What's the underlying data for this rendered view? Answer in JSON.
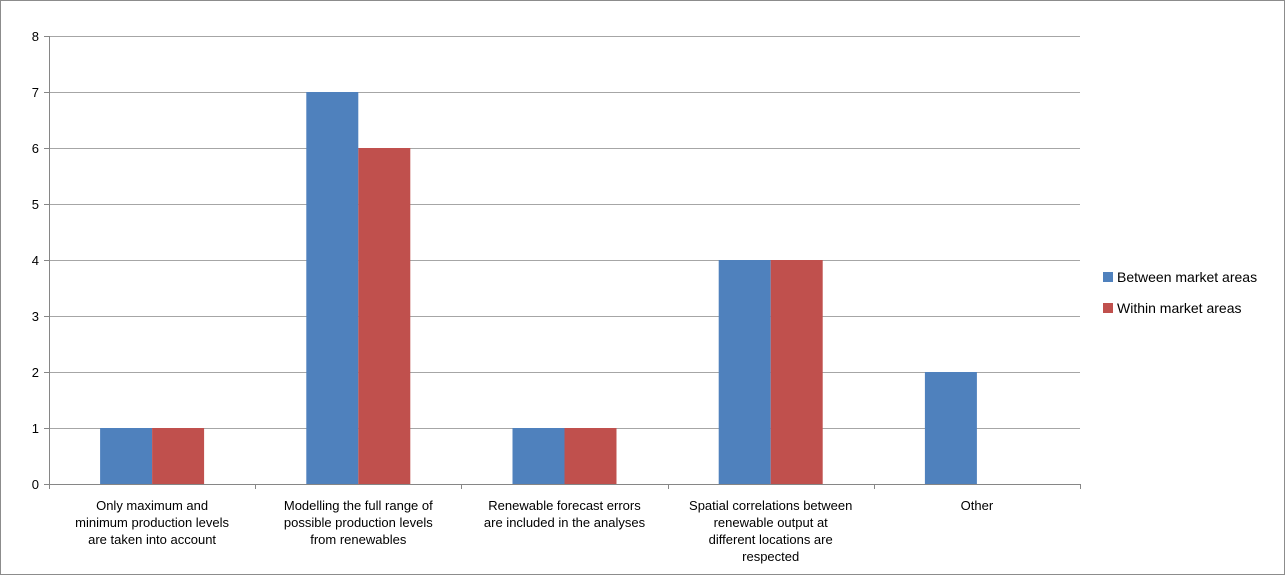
{
  "chart_data": {
    "type": "bar",
    "categories": [
      [
        "Only maximum and",
        "minimum production levels",
        "are taken into account"
      ],
      [
        "Modelling the full range of",
        "possible production levels",
        "from renewables"
      ],
      [
        "Renewable forecast errors",
        "are included in the analyses"
      ],
      [
        "Spatial correlations between",
        "renewable output at",
        "different locations are",
        "respected"
      ],
      [
        "Other"
      ]
    ],
    "series": [
      {
        "name": "Between market areas",
        "color": "#4f81bd",
        "values": [
          1,
          7,
          1,
          4,
          2
        ]
      },
      {
        "name": "Within market areas",
        "color": "#c0504d",
        "values": [
          1,
          6,
          1,
          4,
          0
        ]
      }
    ],
    "yticks": [
      0,
      1,
      2,
      3,
      4,
      5,
      6,
      7,
      8
    ],
    "ylim": [
      0,
      8
    ],
    "grid": true,
    "legend_position": "right"
  }
}
